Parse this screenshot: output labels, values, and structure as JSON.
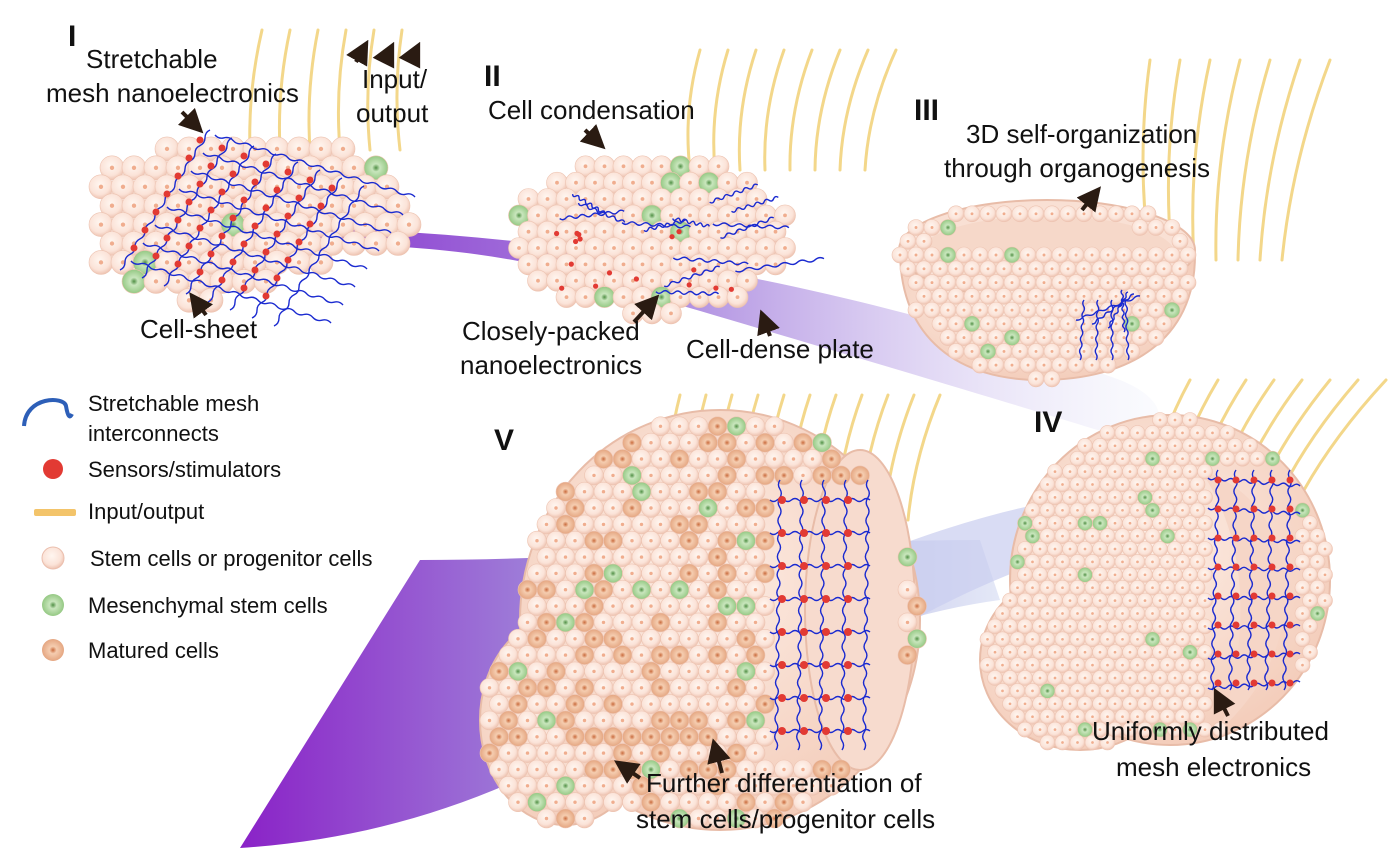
{
  "stages": {
    "s1": "I",
    "s2": "II",
    "s3": "III",
    "s4": "IV",
    "s5": "V"
  },
  "labels": {
    "stretchable_mesh_l1": "Stretchable",
    "stretchable_mesh_l2": "mesh nanoelectronics",
    "input_output_l1": "Input/",
    "input_output_l2": "output",
    "cell_condensation": "Cell condensation",
    "self_org_l1": "3D self-organization",
    "self_org_l2": "through organogenesis",
    "cell_sheet": "Cell-sheet",
    "closely_packed_l1": "Closely-packed",
    "closely_packed_l2": "nanoelectronics",
    "cell_dense_plate": "Cell-dense plate",
    "uniform_l1": "Uniformly distributed",
    "uniform_l2": "mesh electronics",
    "further_diff_l1": "Further differentiation of",
    "further_diff_l2": "stem cells/progenitor cells"
  },
  "legend": {
    "interconnects_l1": "Stretchable mesh",
    "interconnects_l2": "interconnects",
    "sensors": "Sensors/stimulators",
    "io": "Input/output",
    "stem": "Stem cells or progenitor cells",
    "mesenchymal": "Mesenchymal stem cells",
    "matured": "Matured cells"
  },
  "colors": {
    "cell_fill": "#fbe6dc",
    "cell_edge": "#ebbfae",
    "cell_core": "#f2b99c",
    "mesenchymal": "#9ccf8c",
    "matured": "#eab08e",
    "sensor": "#e23a33",
    "wire": "#1a2ad0",
    "io_line": "#f3d78a",
    "arrow": "#2a1b12",
    "ribbon_dark": "#8a2bd0",
    "ribbon_light": "#dfe6f5"
  }
}
